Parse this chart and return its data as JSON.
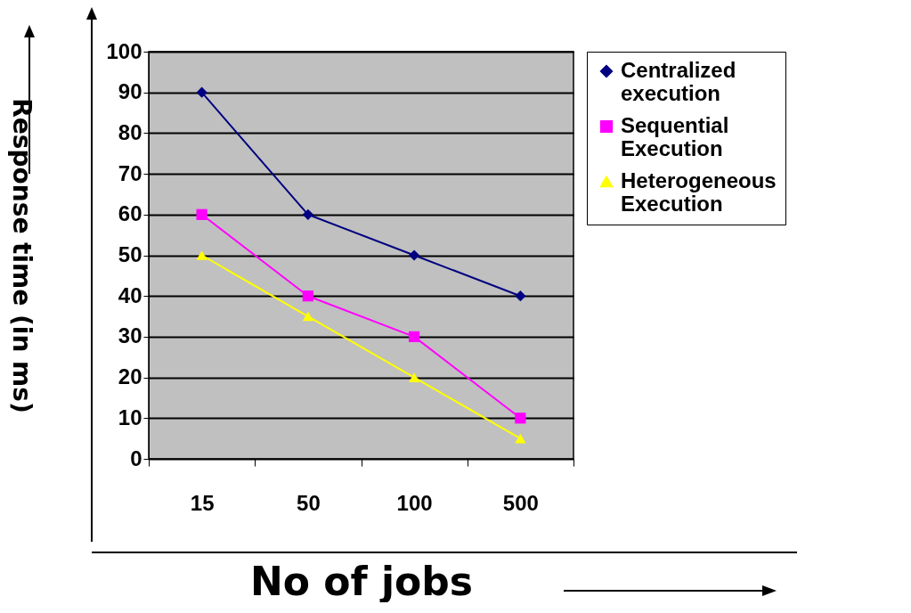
{
  "chart_data": {
    "type": "line",
    "xlabel": "No of jobs",
    "ylabel": "Response time (in ms)",
    "categories": [
      "15",
      "50",
      "100",
      "500"
    ],
    "series": [
      {
        "name": "Centralized execution",
        "color": "#000080",
        "marker": "diamond",
        "values": [
          90,
          60,
          50,
          40
        ]
      },
      {
        "name": "Sequential Execution",
        "color": "#ff00ff",
        "marker": "square",
        "values": [
          60,
          40,
          30,
          10
        ]
      },
      {
        "name": "Heterogeneous Execution",
        "color": "#ffff00",
        "marker": "triangle",
        "values": [
          50,
          35,
          20,
          5
        ]
      }
    ],
    "ylim": [
      0,
      100
    ],
    "yticks": [
      0,
      10,
      20,
      30,
      40,
      50,
      60,
      70,
      80,
      90,
      100
    ],
    "grid": "y",
    "legend": "right"
  }
}
